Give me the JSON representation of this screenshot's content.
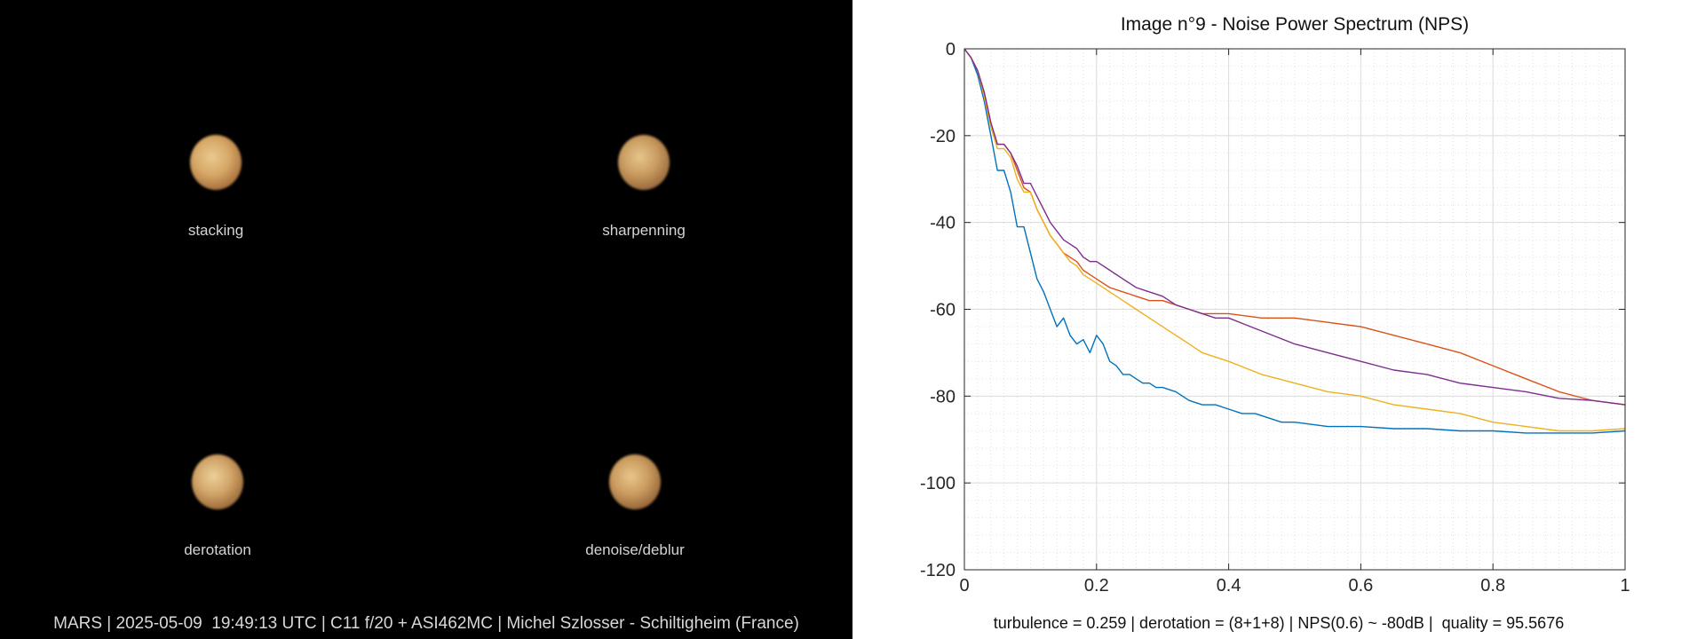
{
  "left_panel": {
    "cells": [
      {
        "label": "stacking",
        "colors": [
          "#e9c98f",
          "#d6a866",
          "#a8703e",
          "#5b3318"
        ]
      },
      {
        "label": "sharpenning",
        "colors": [
          "#e6c58c",
          "#c99c60",
          "#9a6a3d",
          "#4f3019"
        ]
      },
      {
        "label": "derotation",
        "colors": [
          "#ecd09a",
          "#d1a468",
          "#9c6b3b",
          "#4c2d15"
        ]
      },
      {
        "label": "denoise/deblur",
        "colors": [
          "#e7c68b",
          "#cb9c5f",
          "#96663a",
          "#4a2c15"
        ]
      }
    ],
    "caption": "MARS | 2025-05-09  19:49:13 UTC | C11 f/20 + ASI462MC | Michel Szlosser - Schiltigheim (France)"
  },
  "right_caption": "turbulence = 0.259 | derotation = (8+1+8) | NPS(0.6) ~ -80dB |  quality = 95.5676",
  "chart_data": {
    "type": "line",
    "title": "Image n°9 - Noise Power Spectrum (NPS)",
    "xlabel": "",
    "ylabel": "",
    "xlim": [
      0,
      1
    ],
    "ylim": [
      -120,
      0
    ],
    "xticks": [
      0,
      0.2,
      0.4,
      0.6,
      0.8,
      1
    ],
    "xtick_labels": [
      "0",
      "0.2",
      "0.4",
      "0.6",
      "0.8",
      "1"
    ],
    "yticks": [
      0,
      -20,
      -40,
      -60,
      -80,
      -100,
      -120
    ],
    "ytick_labels": [
      "0",
      "-20",
      "-40",
      "-60",
      "-80",
      "-100",
      "-120"
    ],
    "grid": true,
    "minor_grid": true,
    "legend": "none",
    "series": [
      {
        "color": "#0072BD",
        "x": [
          0,
          0.01,
          0.02,
          0.03,
          0.04,
          0.05,
          0.06,
          0.07,
          0.08,
          0.09,
          0.1,
          0.11,
          0.12,
          0.13,
          0.14,
          0.15,
          0.16,
          0.17,
          0.18,
          0.19,
          0.2,
          0.21,
          0.22,
          0.23,
          0.24,
          0.25,
          0.26,
          0.27,
          0.28,
          0.29,
          0.3,
          0.32,
          0.34,
          0.36,
          0.38,
          0.4,
          0.42,
          0.44,
          0.46,
          0.48,
          0.5,
          0.55,
          0.6,
          0.65,
          0.7,
          0.75,
          0.8,
          0.85,
          0.9,
          0.95,
          1.0
        ],
        "y": [
          0,
          -2,
          -6,
          -12,
          -20,
          -28,
          -28,
          -33,
          -41,
          -41,
          -47,
          -53,
          -56,
          -60,
          -64,
          -62,
          -66,
          -68,
          -67,
          -70,
          -66,
          -68,
          -72,
          -73,
          -75,
          -75,
          -76,
          -77,
          -77,
          -78,
          -78,
          -79,
          -81,
          -82,
          -82,
          -83,
          -84,
          -84,
          -85,
          -86,
          -86,
          -87,
          -87,
          -87.5,
          -87.5,
          -88,
          -88,
          -88.5,
          -88.5,
          -88.5,
          -88
        ]
      },
      {
        "color": "#D95319",
        "x": [
          0,
          0.01,
          0.02,
          0.03,
          0.04,
          0.05,
          0.06,
          0.07,
          0.08,
          0.09,
          0.1,
          0.11,
          0.12,
          0.13,
          0.14,
          0.15,
          0.16,
          0.17,
          0.18,
          0.19,
          0.2,
          0.22,
          0.24,
          0.26,
          0.28,
          0.3,
          0.32,
          0.34,
          0.36,
          0.38,
          0.4,
          0.45,
          0.5,
          0.55,
          0.6,
          0.65,
          0.7,
          0.75,
          0.8,
          0.85,
          0.9,
          0.95,
          1.0
        ],
        "y": [
          0,
          -2,
          -5,
          -10,
          -17,
          -22,
          -22,
          -24,
          -28,
          -32,
          -33,
          -37,
          -40,
          -43,
          -45,
          -47,
          -48,
          -49,
          -51,
          -52,
          -53,
          -55,
          -56,
          -57,
          -58,
          -58,
          -59,
          -60,
          -61,
          -61,
          -61,
          -62,
          -62,
          -63,
          -64,
          -66,
          -68,
          -70,
          -73,
          -76,
          -79,
          -81,
          -82
        ]
      },
      {
        "color": "#EDB120",
        "x": [
          0,
          0.01,
          0.02,
          0.03,
          0.04,
          0.05,
          0.06,
          0.07,
          0.08,
          0.09,
          0.1,
          0.11,
          0.12,
          0.13,
          0.14,
          0.15,
          0.16,
          0.17,
          0.18,
          0.19,
          0.2,
          0.22,
          0.24,
          0.26,
          0.28,
          0.3,
          0.32,
          0.34,
          0.36,
          0.38,
          0.4,
          0.45,
          0.5,
          0.55,
          0.6,
          0.65,
          0.7,
          0.75,
          0.8,
          0.85,
          0.9,
          0.95,
          1.0
        ],
        "y": [
          0,
          -2,
          -5,
          -11,
          -18,
          -23,
          -23,
          -25,
          -30,
          -33,
          -33,
          -37,
          -40,
          -43,
          -45,
          -47,
          -49,
          -50,
          -52,
          -53,
          -54,
          -56,
          -58,
          -60,
          -62,
          -64,
          -66,
          -68,
          -70,
          -71,
          -72,
          -75,
          -77,
          -79,
          -80,
          -82,
          -83,
          -84,
          -86,
          -87,
          -88,
          -88,
          -87.5
        ]
      },
      {
        "color": "#7E2F8E",
        "x": [
          0,
          0.01,
          0.02,
          0.03,
          0.04,
          0.05,
          0.06,
          0.07,
          0.08,
          0.09,
          0.1,
          0.11,
          0.12,
          0.13,
          0.14,
          0.15,
          0.16,
          0.17,
          0.18,
          0.19,
          0.2,
          0.22,
          0.24,
          0.26,
          0.28,
          0.3,
          0.32,
          0.34,
          0.36,
          0.38,
          0.4,
          0.45,
          0.5,
          0.55,
          0.6,
          0.65,
          0.7,
          0.75,
          0.8,
          0.85,
          0.9,
          0.95,
          1.0
        ],
        "y": [
          0,
          -2,
          -5,
          -10,
          -17,
          -22,
          -22,
          -24,
          -27,
          -31,
          -31,
          -34,
          -37,
          -40,
          -42,
          -44,
          -45,
          -46,
          -48,
          -49,
          -49,
          -51,
          -53,
          -55,
          -56,
          -57,
          -59,
          -60,
          -61,
          -62,
          -62,
          -65,
          -68,
          -70,
          -72,
          -74,
          -75,
          -77,
          -78,
          -79,
          -80.5,
          -81,
          -82
        ]
      }
    ]
  }
}
